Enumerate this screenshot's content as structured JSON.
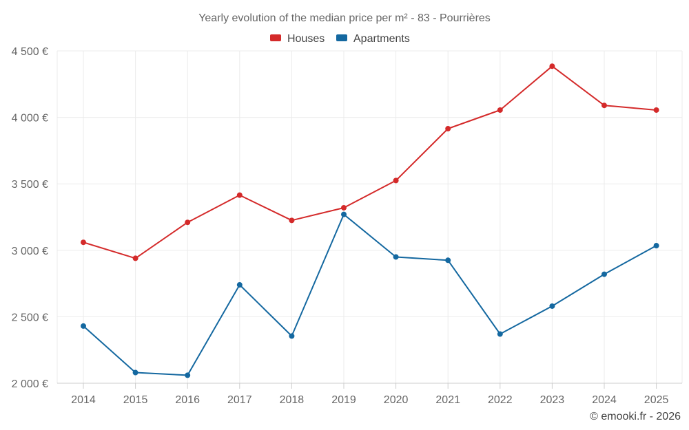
{
  "chart_data": {
    "type": "line",
    "title": "Yearly evolution of the median price per m² - 83 - Pourrières",
    "categories": [
      "2014",
      "2015",
      "2016",
      "2017",
      "2018",
      "2019",
      "2020",
      "2021",
      "2022",
      "2023",
      "2024",
      "2025"
    ],
    "ylim": [
      2000,
      4500
    ],
    "yticks": [
      2000,
      2500,
      3000,
      3500,
      4000,
      4500
    ],
    "ytick_labels": [
      "2 000 €",
      "2 500 €",
      "3 000 €",
      "3 500 €",
      "4 000 €",
      "4 500 €"
    ],
    "grid": true,
    "legend_position": "top-center",
    "series": [
      {
        "name": "Houses",
        "color": "#d42a2a",
        "values": [
          3060,
          2940,
          3210,
          3415,
          3225,
          3320,
          3525,
          3915,
          4055,
          4385,
          4090,
          4055
        ]
      },
      {
        "name": "Apartments",
        "color": "#1468a0",
        "values": [
          2430,
          2080,
          2060,
          2740,
          2355,
          3270,
          2950,
          2925,
          2370,
          2580,
          2820,
          3035
        ]
      }
    ]
  },
  "credit": "© emooki.fr - 2026"
}
